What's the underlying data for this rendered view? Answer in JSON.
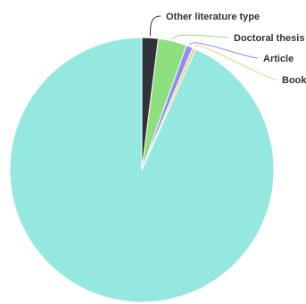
{
  "chart_data": {
    "type": "pie",
    "title": "",
    "start_angle_deg": 0,
    "slices": [
      {
        "label": "Other literature type",
        "value": 2.0,
        "color": "#2f3339"
      },
      {
        "label": "Doctoral thesis",
        "value": 3.5,
        "color": "#8ee07f"
      },
      {
        "label": "Article",
        "value": 0.8,
        "color": "#8c8ef0"
      },
      {
        "label": "Book",
        "value": 0.4,
        "color": "#ecd277"
      },
      {
        "label": "",
        "value": 93.3,
        "color": "#95e8e0"
      }
    ]
  }
}
